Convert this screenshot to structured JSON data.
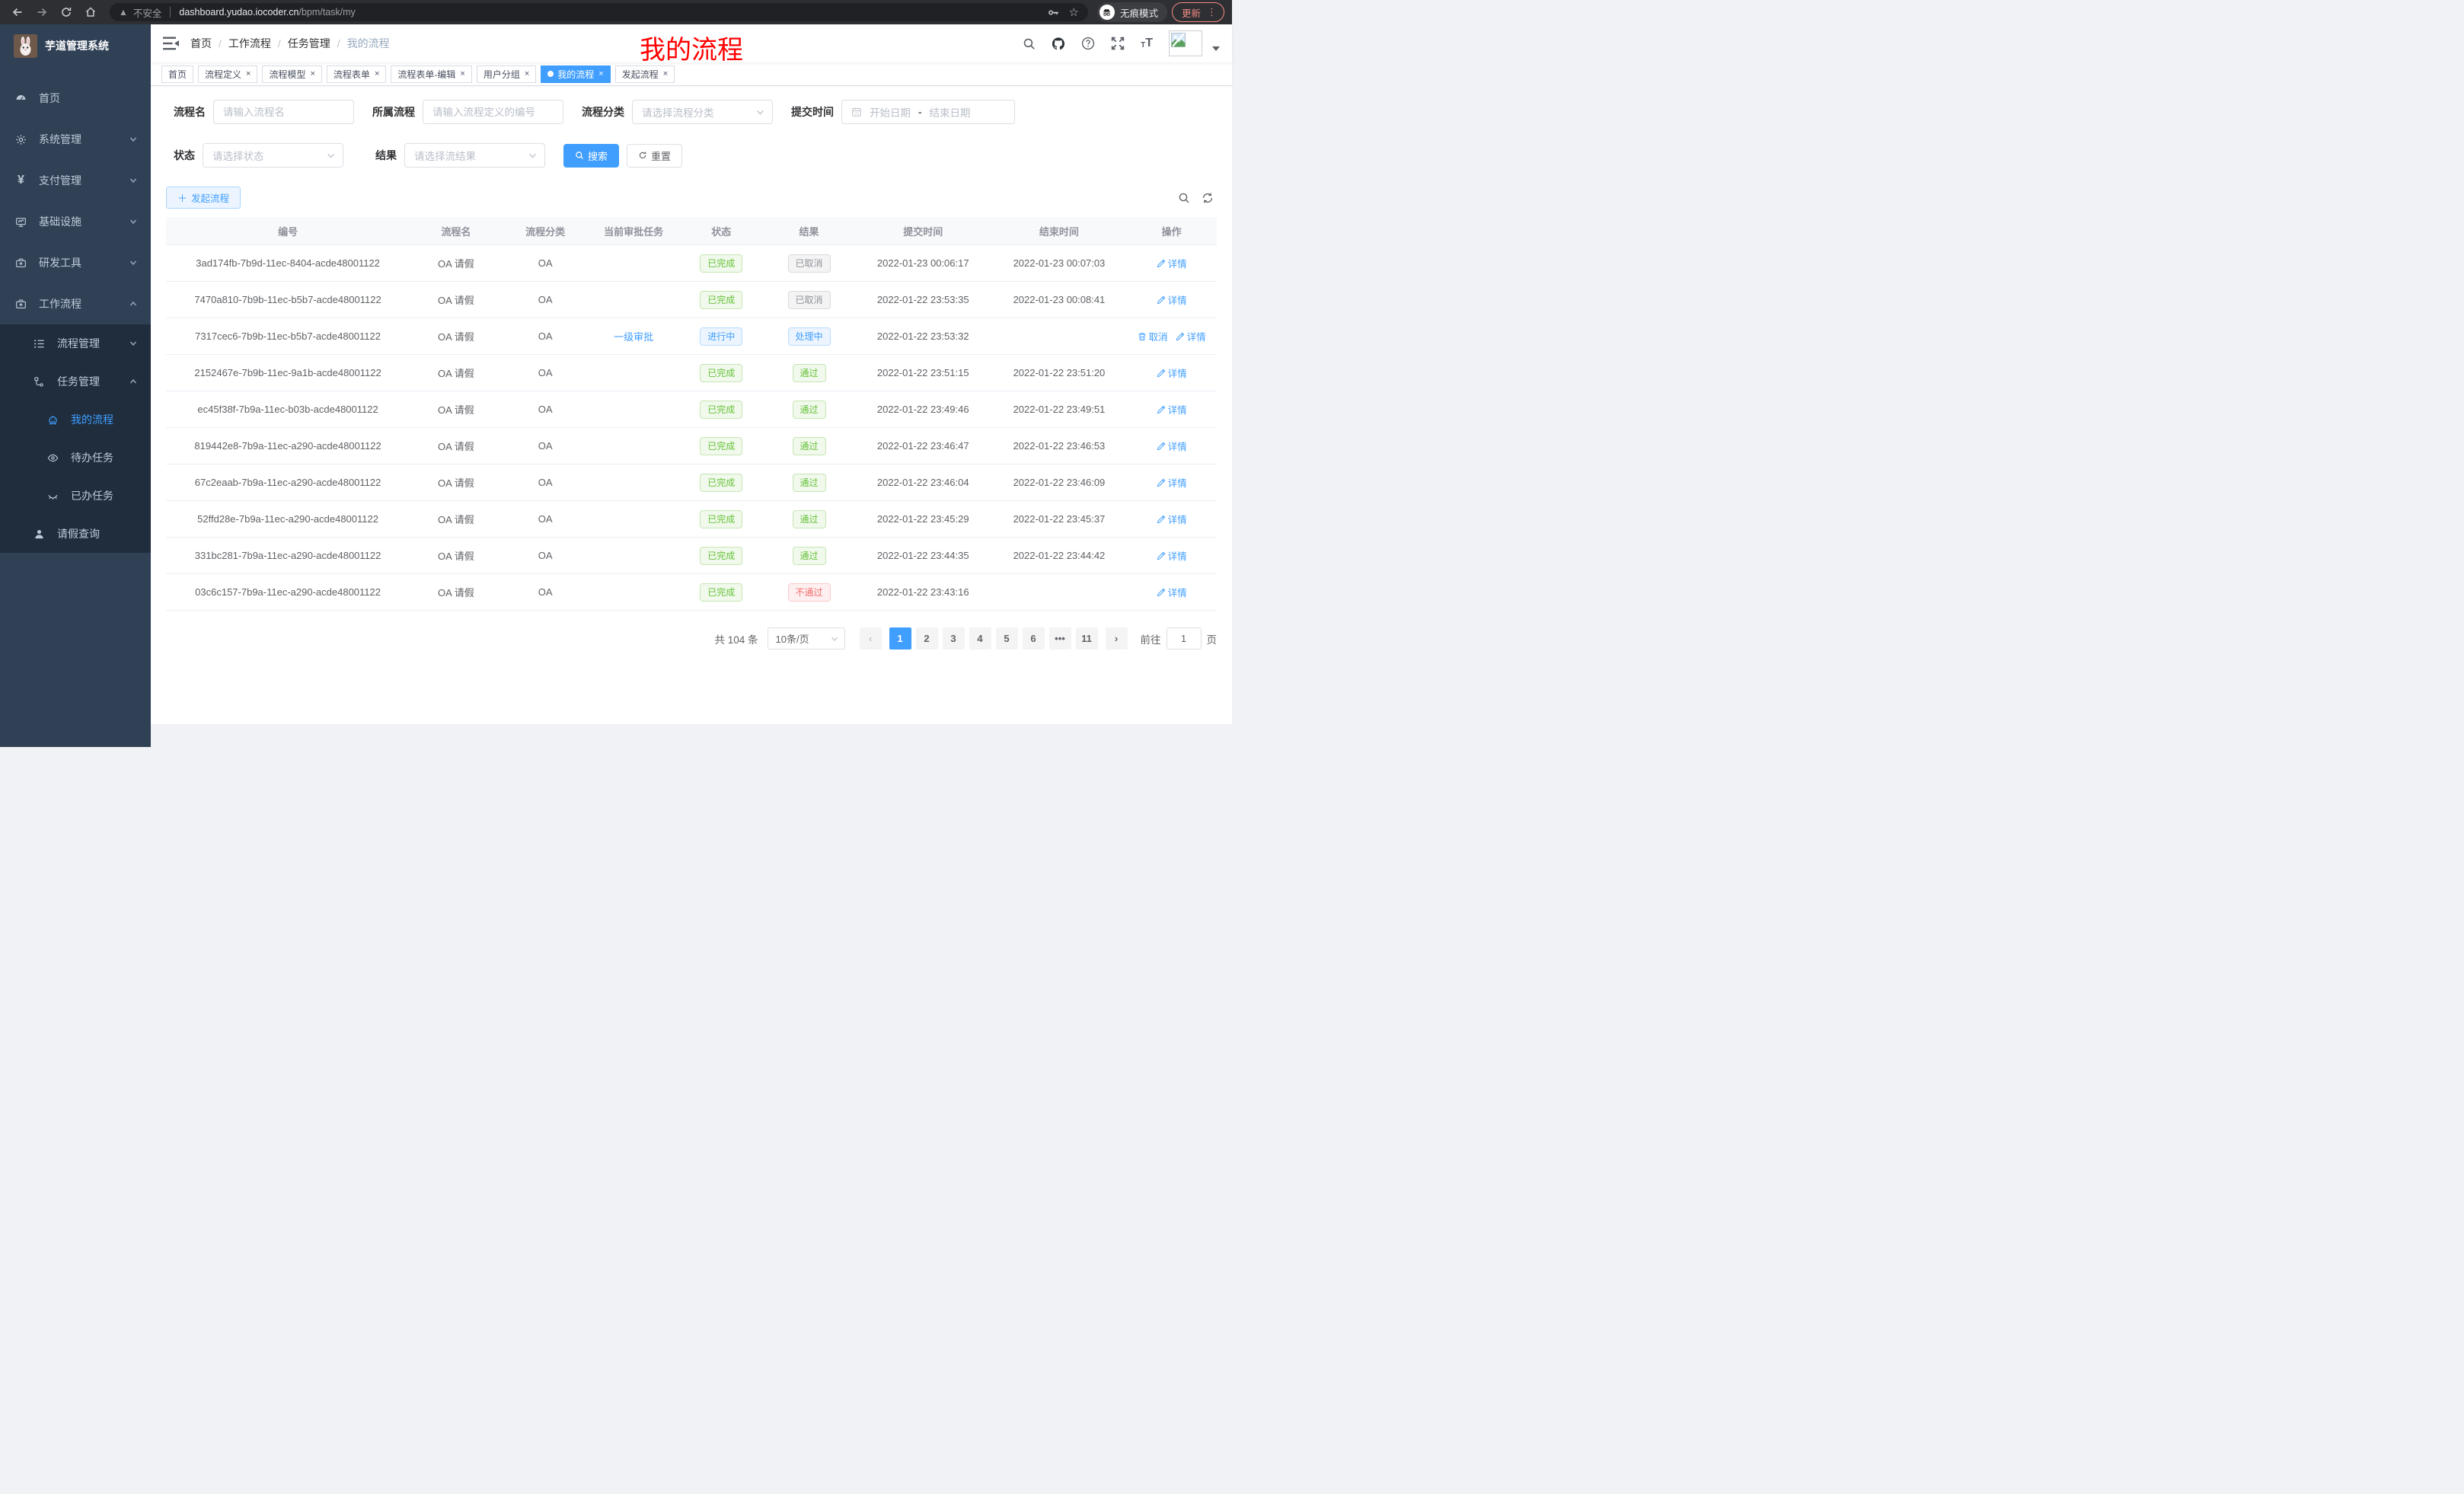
{
  "browser": {
    "security_label": "不安全",
    "url_host": "dashboard.yudao.iocoder.cn",
    "url_path": "/bpm/task/my",
    "incognito_label": "无痕模式",
    "update_label": "更新"
  },
  "colors": {
    "primary": "#409eff",
    "success": "#67c23a",
    "danger": "#f56c6c",
    "info": "#909399",
    "sidebar_bg": "#304156",
    "submenu_bg": "#1f2d3d",
    "overlay_title_red": "#ff0000",
    "update_button": "#f28b82"
  },
  "sidebar": {
    "title": "芋道管理系统",
    "menu": [
      {
        "label": "首页"
      },
      {
        "label": "系统管理"
      },
      {
        "label": "支付管理"
      },
      {
        "label": "基础设施"
      },
      {
        "label": "研发工具"
      },
      {
        "label": "工作流程"
      }
    ],
    "submenu": [
      {
        "label": "流程管理"
      },
      {
        "label": "任务管理"
      },
      {
        "label": "我的流程"
      },
      {
        "label": "待办任务"
      },
      {
        "label": "已办任务"
      },
      {
        "label": "请假查询"
      }
    ]
  },
  "navbar": {
    "breadcrumb": [
      "首页",
      "工作流程",
      "任务管理",
      "我的流程"
    ],
    "overlay_title": "我的流程"
  },
  "tabs": [
    {
      "label": "首页",
      "closable": false,
      "active": false
    },
    {
      "label": "流程定义",
      "closable": true,
      "active": false
    },
    {
      "label": "流程模型",
      "closable": true,
      "active": false
    },
    {
      "label": "流程表单",
      "closable": true,
      "active": false
    },
    {
      "label": "流程表单-编辑",
      "closable": true,
      "active": false
    },
    {
      "label": "用户分组",
      "closable": true,
      "active": false
    },
    {
      "label": "我的流程",
      "closable": true,
      "active": true
    },
    {
      "label": "发起流程",
      "closable": true,
      "active": false
    }
  ],
  "filters": {
    "process_name": {
      "label": "流程名",
      "placeholder": "请输入流程名"
    },
    "process_def": {
      "label": "所属流程",
      "placeholder": "请输入流程定义的编号"
    },
    "category": {
      "label": "流程分类",
      "placeholder": "请选择流程分类"
    },
    "submit_time": {
      "label": "提交时间",
      "start_placeholder": "开始日期",
      "separator": "-",
      "end_placeholder": "结束日期"
    },
    "status": {
      "label": "状态",
      "placeholder": "请选择状态"
    },
    "result": {
      "label": "结果",
      "placeholder": "请选择流结果"
    },
    "search_label": "搜索",
    "reset_label": "重置"
  },
  "toolbar": {
    "create_label": "发起流程"
  },
  "table": {
    "headers": [
      "编号",
      "流程名",
      "流程分类",
      "当前审批任务",
      "状态",
      "结果",
      "提交时间",
      "结束时间",
      "操作"
    ],
    "action_labels": {
      "detail": "详情",
      "cancel": "取消"
    },
    "rows": [
      {
        "id": "3ad174fb-7b9d-11ec-8404-acde48001122",
        "name": "OA 请假",
        "category": "OA",
        "task": "",
        "status": {
          "label": "已完成",
          "type": "success"
        },
        "result": {
          "label": "已取消",
          "type": "info"
        },
        "submit": "2022-01-23 00:06:17",
        "end": "2022-01-23 00:07:03",
        "actions": [
          "detail"
        ]
      },
      {
        "id": "7470a810-7b9b-11ec-b5b7-acde48001122",
        "name": "OA 请假",
        "category": "OA",
        "task": "",
        "status": {
          "label": "已完成",
          "type": "success"
        },
        "result": {
          "label": "已取消",
          "type": "info"
        },
        "submit": "2022-01-22 23:53:35",
        "end": "2022-01-23 00:08:41",
        "actions": [
          "detail"
        ]
      },
      {
        "id": "7317cec6-7b9b-11ec-b5b7-acde48001122",
        "name": "OA 请假",
        "category": "OA",
        "task": "一级审批",
        "status": {
          "label": "进行中",
          "type": "primary"
        },
        "result": {
          "label": "处理中",
          "type": "primary"
        },
        "submit": "2022-01-22 23:53:32",
        "end": "",
        "actions": [
          "cancel",
          "detail"
        ]
      },
      {
        "id": "2152467e-7b9b-11ec-9a1b-acde48001122",
        "name": "OA 请假",
        "category": "OA",
        "task": "",
        "status": {
          "label": "已完成",
          "type": "success"
        },
        "result": {
          "label": "通过",
          "type": "success"
        },
        "submit": "2022-01-22 23:51:15",
        "end": "2022-01-22 23:51:20",
        "actions": [
          "detail"
        ]
      },
      {
        "id": "ec45f38f-7b9a-11ec-b03b-acde48001122",
        "name": "OA 请假",
        "category": "OA",
        "task": "",
        "status": {
          "label": "已完成",
          "type": "success"
        },
        "result": {
          "label": "通过",
          "type": "success"
        },
        "submit": "2022-01-22 23:49:46",
        "end": "2022-01-22 23:49:51",
        "actions": [
          "detail"
        ]
      },
      {
        "id": "819442e8-7b9a-11ec-a290-acde48001122",
        "name": "OA 请假",
        "category": "OA",
        "task": "",
        "status": {
          "label": "已完成",
          "type": "success"
        },
        "result": {
          "label": "通过",
          "type": "success"
        },
        "submit": "2022-01-22 23:46:47",
        "end": "2022-01-22 23:46:53",
        "actions": [
          "detail"
        ]
      },
      {
        "id": "67c2eaab-7b9a-11ec-a290-acde48001122",
        "name": "OA 请假",
        "category": "OA",
        "task": "",
        "status": {
          "label": "已完成",
          "type": "success"
        },
        "result": {
          "label": "通过",
          "type": "success"
        },
        "submit": "2022-01-22 23:46:04",
        "end": "2022-01-22 23:46:09",
        "actions": [
          "detail"
        ]
      },
      {
        "id": "52ffd28e-7b9a-11ec-a290-acde48001122",
        "name": "OA 请假",
        "category": "OA",
        "task": "",
        "status": {
          "label": "已完成",
          "type": "success"
        },
        "result": {
          "label": "通过",
          "type": "success"
        },
        "submit": "2022-01-22 23:45:29",
        "end": "2022-01-22 23:45:37",
        "actions": [
          "detail"
        ]
      },
      {
        "id": "331bc281-7b9a-11ec-a290-acde48001122",
        "name": "OA 请假",
        "category": "OA",
        "task": "",
        "status": {
          "label": "已完成",
          "type": "success"
        },
        "result": {
          "label": "通过",
          "type": "success"
        },
        "submit": "2022-01-22 23:44:35",
        "end": "2022-01-22 23:44:42",
        "actions": [
          "detail"
        ]
      },
      {
        "id": "03c6c157-7b9a-11ec-a290-acde48001122",
        "name": "OA 请假",
        "category": "OA",
        "task": "",
        "status": {
          "label": "已完成",
          "type": "success"
        },
        "result": {
          "label": "不通过",
          "type": "danger"
        },
        "submit": "2022-01-22 23:43:16",
        "end": "",
        "actions": [
          "detail"
        ]
      }
    ]
  },
  "pagination": {
    "total_label": "共 104 条",
    "page_size": "10条/页",
    "pages": [
      "1",
      "2",
      "3",
      "4",
      "5",
      "6",
      "•••",
      "11"
    ],
    "active_page": "1",
    "prev": "‹",
    "next": "›",
    "goto_label": "前往",
    "goto_value": "1",
    "goto_suffix": "页"
  }
}
